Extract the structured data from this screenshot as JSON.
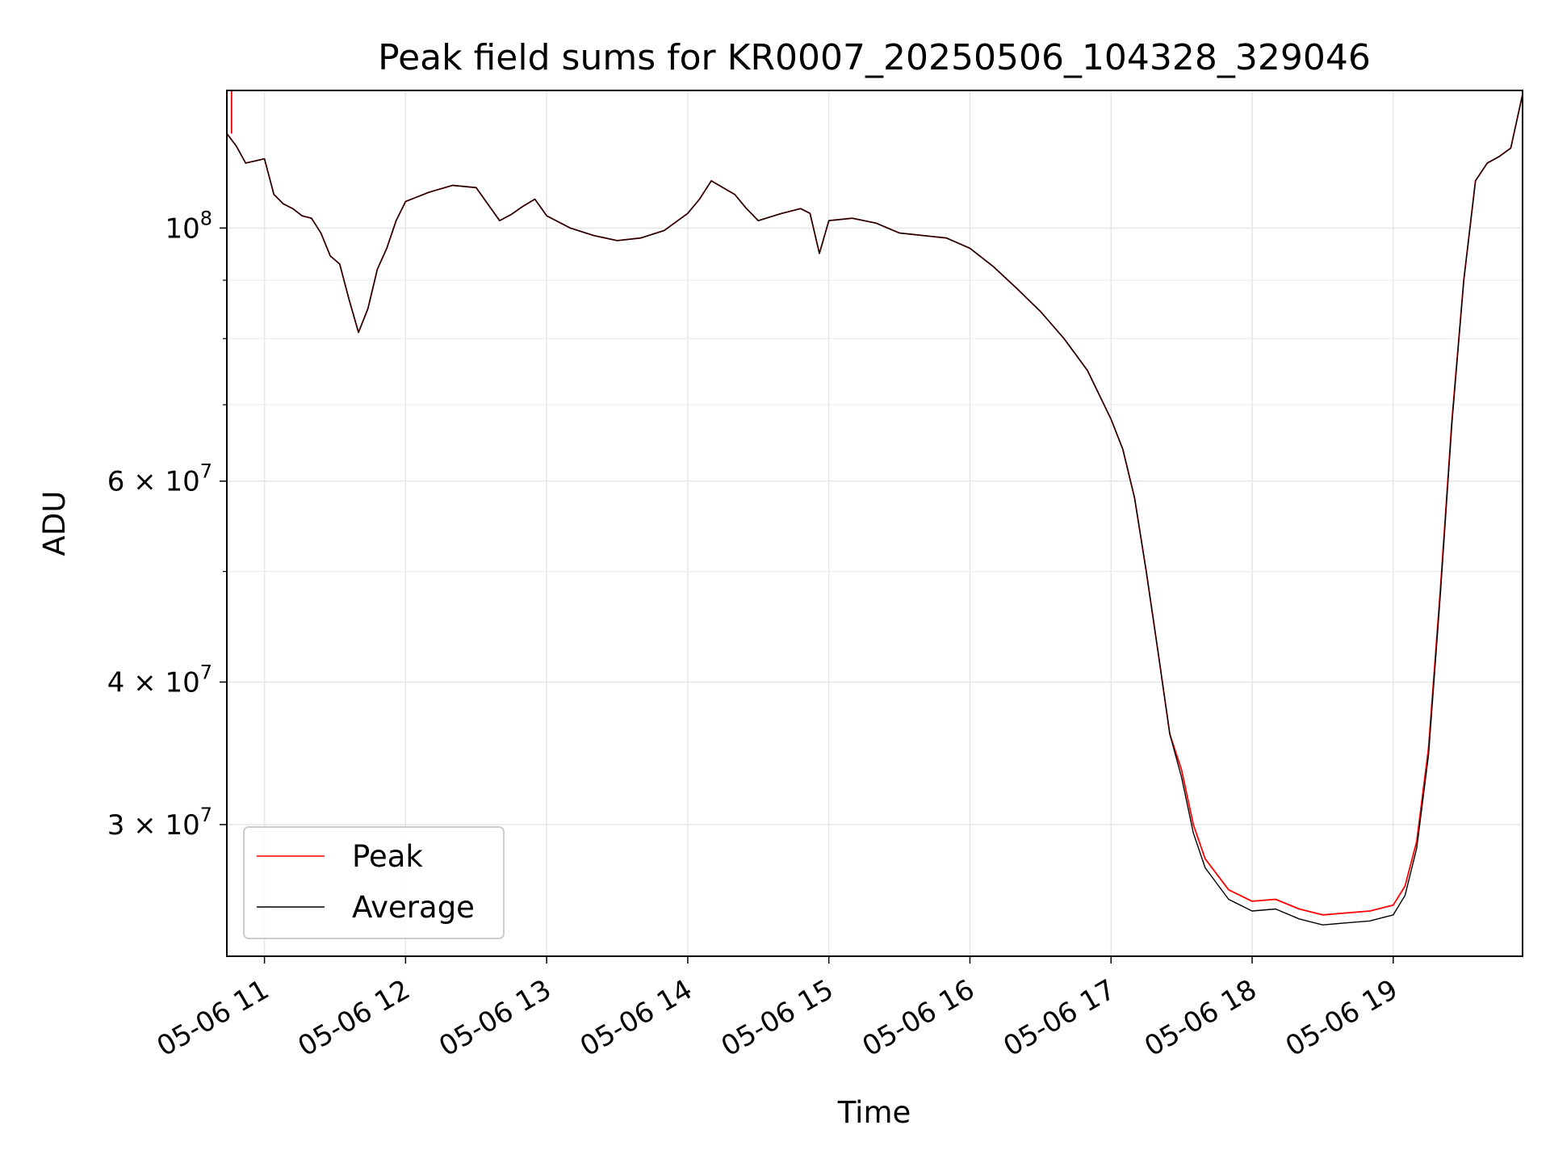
{
  "chart_data": {
    "type": "line",
    "title": "Peak field sums for KR0007_20250506_104328_329046",
    "xlabel": "Time",
    "ylabel": "ADU",
    "y_scale": "log",
    "ylim": [
      23000000,
      132000000
    ],
    "xlim": [
      "05-06 10:44",
      "05-06 19:55"
    ],
    "grid": true,
    "legend_position": "lower-left",
    "x_ticks": [
      "05-06 11",
      "05-06 12",
      "05-06 13",
      "05-06 14",
      "05-06 15",
      "05-06 16",
      "05-06 17",
      "05-06 18",
      "05-06 19"
    ],
    "y_ticks": [
      {
        "value": 100000000,
        "base": "10",
        "exp": "8",
        "mantissa": ""
      },
      {
        "value": 60000000,
        "base": "10",
        "exp": "7",
        "mantissa": "6 × "
      },
      {
        "value": 40000000,
        "base": "10",
        "exp": "7",
        "mantissa": "4 × "
      },
      {
        "value": 30000000,
        "base": "10",
        "exp": "7",
        "mantissa": "3 × "
      }
    ],
    "y_minor_ticks": [
      50000000,
      70000000,
      80000000,
      90000000
    ],
    "x": [
      "05-06 10:44",
      "05-06 10:48",
      "05-06 10:52",
      "05-06 10:56",
      "05-06 11:00",
      "05-06 11:04",
      "05-06 11:08",
      "05-06 11:12",
      "05-06 11:16",
      "05-06 11:20",
      "05-06 11:24",
      "05-06 11:28",
      "05-06 11:32",
      "05-06 11:36",
      "05-06 11:40",
      "05-06 11:44",
      "05-06 11:48",
      "05-06 11:52",
      "05-06 11:56",
      "05-06 12:00",
      "05-06 12:10",
      "05-06 12:20",
      "05-06 12:30",
      "05-06 12:40",
      "05-06 12:45",
      "05-06 12:50",
      "05-06 12:55",
      "05-06 13:00",
      "05-06 13:10",
      "05-06 13:20",
      "05-06 13:30",
      "05-06 13:40",
      "05-06 13:50",
      "05-06 14:00",
      "05-06 14:05",
      "05-06 14:10",
      "05-06 14:15",
      "05-06 14:20",
      "05-06 14:25",
      "05-06 14:30",
      "05-06 14:40",
      "05-06 14:48",
      "05-06 14:52",
      "05-06 14:56",
      "05-06 15:00",
      "05-06 15:10",
      "05-06 15:20",
      "05-06 15:30",
      "05-06 15:40",
      "05-06 15:50",
      "05-06 16:00",
      "05-06 16:10",
      "05-06 16:20",
      "05-06 16:30",
      "05-06 16:40",
      "05-06 16:50",
      "05-06 17:00",
      "05-06 17:05",
      "05-06 17:10",
      "05-06 17:15",
      "05-06 17:20",
      "05-06 17:25",
      "05-06 17:30",
      "05-06 17:35",
      "05-06 17:40",
      "05-06 17:50",
      "05-06 18:00",
      "05-06 18:10",
      "05-06 18:20",
      "05-06 18:30",
      "05-06 18:40",
      "05-06 18:50",
      "05-06 19:00",
      "05-06 19:05",
      "05-06 19:10",
      "05-06 19:15",
      "05-06 19:20",
      "05-06 19:25",
      "05-06 19:30",
      "05-06 19:35",
      "05-06 19:40",
      "05-06 19:45",
      "05-06 19:50",
      "05-06 19:55"
    ],
    "series": [
      {
        "name": "Peak",
        "color": "#ff0000",
        "values": [
          121000000,
          118000000,
          114000000,
          114500000,
          115000000,
          107000000,
          105000000,
          104000000,
          102500000,
          102000000,
          99000000,
          94500000,
          93000000,
          86500000,
          81000000,
          85000000,
          92000000,
          96000000,
          101500000,
          105500000,
          107500000,
          109000000,
          108500000,
          101500000,
          102800000,
          104500000,
          106000000,
          102500000,
          100000000,
          98500000,
          97500000,
          98000000,
          99500000,
          103000000,
          106000000,
          110000000,
          108500000,
          107000000,
          104000000,
          101500000,
          103000000,
          104000000,
          103000000,
          95000000,
          101500000,
          102000000,
          101000000,
          99000000,
          98500000,
          98000000,
          96000000,
          92500000,
          88500000,
          84500000,
          80000000,
          75000000,
          68000000,
          64000000,
          58000000,
          50000000,
          42500000,
          36000000,
          33500000,
          30000000,
          28000000,
          26300000,
          25700000,
          25800000,
          25300000,
          25000000,
          25100000,
          25200000,
          25500000,
          26500000,
          29000000,
          35000000,
          48000000,
          68000000,
          90000000,
          110000000,
          114000000,
          115500000,
          117500000,
          131000000
        ]
      },
      {
        "name": "Average",
        "color": "#000000",
        "values": [
          121000000,
          118000000,
          114000000,
          114500000,
          115000000,
          107000000,
          105000000,
          104000000,
          102500000,
          102000000,
          99000000,
          94500000,
          93000000,
          86500000,
          81000000,
          85000000,
          92000000,
          96000000,
          101500000,
          105500000,
          107500000,
          109000000,
          108500000,
          101500000,
          102800000,
          104500000,
          106000000,
          102500000,
          100000000,
          98500000,
          97500000,
          98000000,
          99500000,
          103000000,
          106000000,
          110000000,
          108500000,
          107000000,
          104000000,
          101500000,
          103000000,
          104000000,
          103000000,
          95000000,
          101500000,
          102000000,
          101000000,
          99000000,
          98500000,
          98000000,
          96000000,
          92500000,
          88500000,
          84500000,
          80000000,
          75000000,
          68000000,
          64000000,
          58000000,
          50000000,
          42500000,
          36000000,
          33000000,
          29500000,
          27500000,
          25800000,
          25200000,
          25300000,
          24800000,
          24500000,
          24600000,
          24700000,
          25000000,
          26000000,
          28600000,
          34500000,
          47500000,
          67500000,
          90000000,
          110000000,
          114000000,
          115500000,
          117500000,
          131000000
        ]
      }
    ]
  }
}
